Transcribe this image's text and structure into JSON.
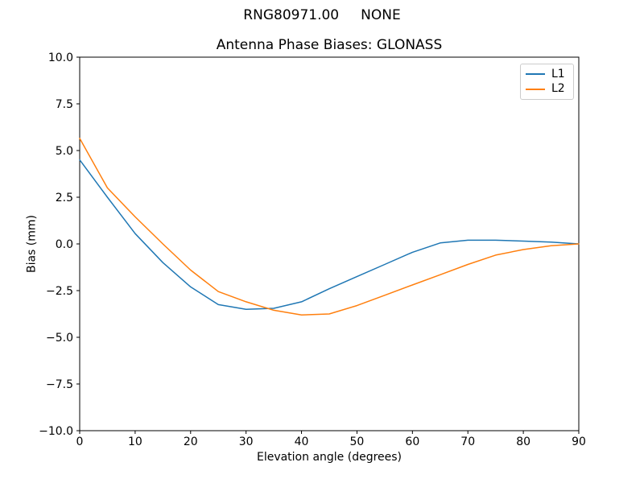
{
  "figure": {
    "suptitle": "RNG80971.00     NONE",
    "title": "Antenna Phase Biases: GLONASS",
    "xlabel": "Elevation angle (degrees)",
    "ylabel": "Bias (mm)"
  },
  "colors": {
    "l1": "#1f77b4",
    "l2": "#ff7f0e",
    "axis": "#000000",
    "legend_border": "#cccccc",
    "background": "#ffffff"
  },
  "chart_data": {
    "type": "line",
    "suptitle": "RNG80971.00     NONE",
    "title": "Antenna Phase Biases: GLONASS",
    "xlabel": "Elevation angle (degrees)",
    "ylabel": "Bias (mm)",
    "xlim": [
      0,
      90
    ],
    "ylim": [
      -10,
      10
    ],
    "grid": false,
    "legend_position": "upper right",
    "xticks": [
      0,
      10,
      20,
      30,
      40,
      50,
      60,
      70,
      80,
      90
    ],
    "xtick_labels": [
      "0",
      "10",
      "20",
      "30",
      "40",
      "50",
      "60",
      "70",
      "80",
      "90"
    ],
    "yticks": [
      10.0,
      7.5,
      5.0,
      2.5,
      0.0,
      -2.5,
      -5.0,
      -7.5,
      -10.0
    ],
    "ytick_labels": [
      "10.0",
      "7.5",
      "5.0",
      "2.5",
      "0.0",
      "−2.5",
      "−5.0",
      "−7.5",
      "−10.0"
    ],
    "x": [
      0,
      5,
      10,
      15,
      20,
      25,
      30,
      35,
      40,
      45,
      50,
      55,
      60,
      65,
      70,
      75,
      80,
      85,
      90
    ],
    "series": [
      {
        "name": "L1",
        "color": "#1f77b4",
        "values": [
          4.5,
          2.5,
          0.55,
          -1.0,
          -2.3,
          -3.25,
          -3.5,
          -3.45,
          -3.1,
          -2.4,
          -1.75,
          -1.1,
          -0.45,
          0.05,
          0.2,
          0.2,
          0.15,
          0.1,
          0.0
        ]
      },
      {
        "name": "L2",
        "color": "#ff7f0e",
        "values": [
          5.65,
          3.0,
          1.45,
          0.0,
          -1.4,
          -2.55,
          -3.1,
          -3.55,
          -3.8,
          -3.75,
          -3.3,
          -2.75,
          -2.2,
          -1.65,
          -1.1,
          -0.6,
          -0.3,
          -0.1,
          0.0
        ]
      }
    ]
  }
}
